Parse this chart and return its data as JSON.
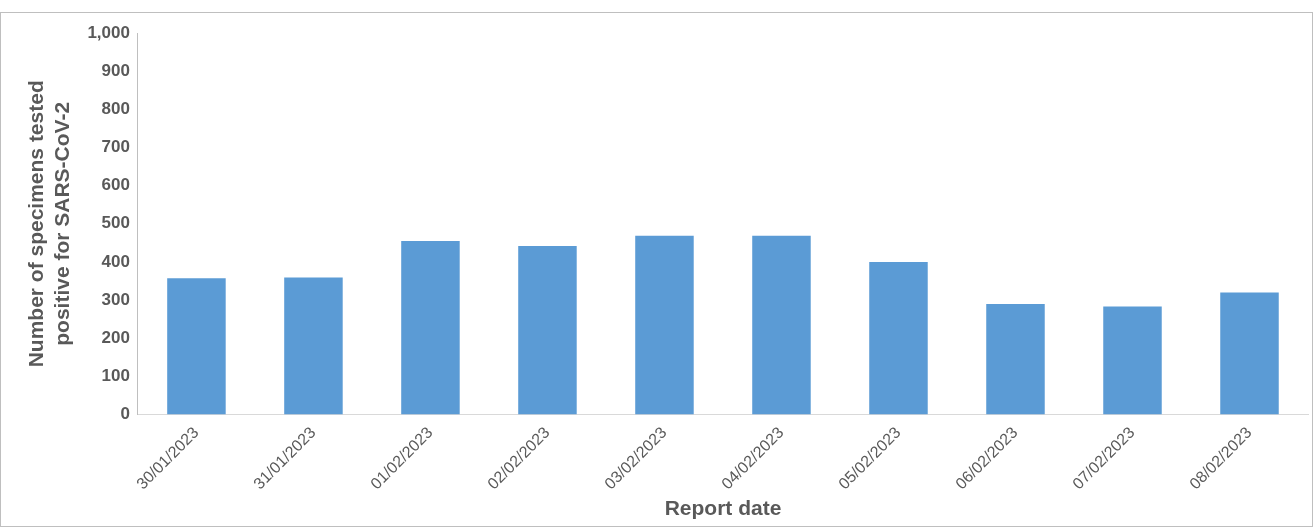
{
  "chart_data": {
    "type": "bar",
    "xlabel": "Report date",
    "ylabel": "Number of specimens tested positive for SARS-CoV-2",
    "categories": [
      "30/01/2023",
      "31/01/2023",
      "01/02/2023",
      "02/02/2023",
      "03/02/2023",
      "04/02/2023",
      "05/02/2023",
      "06/02/2023",
      "07/02/2023",
      "08/02/2023"
    ],
    "values": [
      357,
      359,
      455,
      442,
      469,
      469,
      400,
      290,
      283,
      320
    ],
    "color": "#5b9bd5",
    "ylim": [
      0,
      1000
    ],
    "yticks": [
      {
        "value": 0,
        "label": "0"
      },
      {
        "value": 100,
        "label": "100"
      },
      {
        "value": 200,
        "label": "200"
      },
      {
        "value": 300,
        "label": "300"
      },
      {
        "value": 400,
        "label": "400"
      },
      {
        "value": 500,
        "label": "500"
      },
      {
        "value": 600,
        "label": "600"
      },
      {
        "value": 700,
        "label": "700"
      },
      {
        "value": 800,
        "label": "800"
      },
      {
        "value": 900,
        "label": "900"
      },
      {
        "value": 1000,
        "label": "1,000"
      }
    ],
    "grid": false,
    "legend": false
  }
}
